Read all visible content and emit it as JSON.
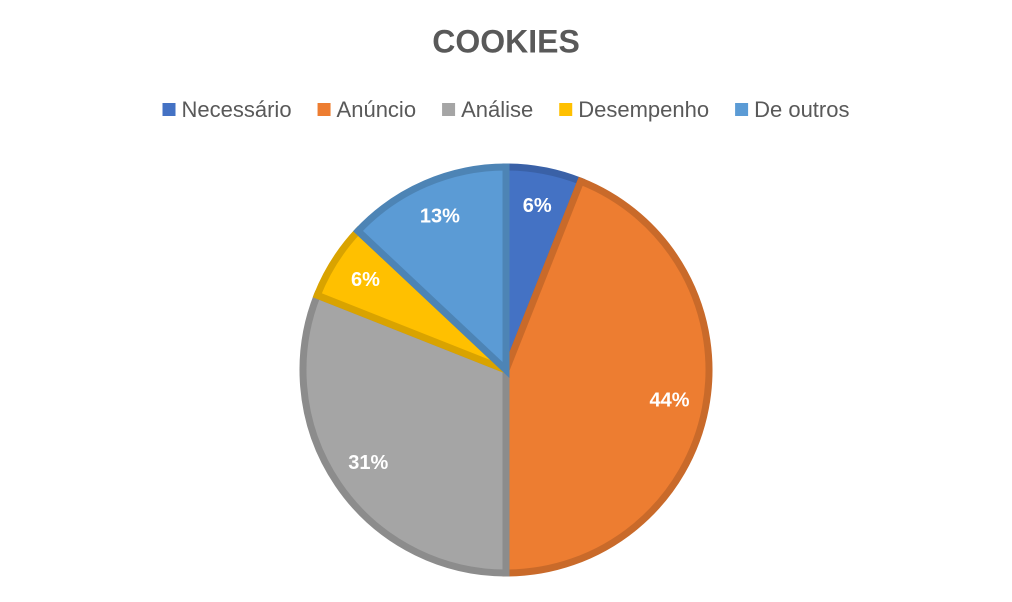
{
  "chart_data": {
    "type": "pie",
    "title": "COOKIES",
    "categories": [
      "Necessário",
      "Anúncio",
      "Análise",
      "Desempenho",
      "De outros"
    ],
    "values": [
      6,
      44,
      31,
      6,
      13
    ],
    "value_labels": [
      "6%",
      "44%",
      "31%",
      "6%",
      "13%"
    ],
    "colors": [
      "#4472c4",
      "#ed7d31",
      "#a5a5a5",
      "#ffc000",
      "#5b9bd5"
    ],
    "legend": "top"
  }
}
